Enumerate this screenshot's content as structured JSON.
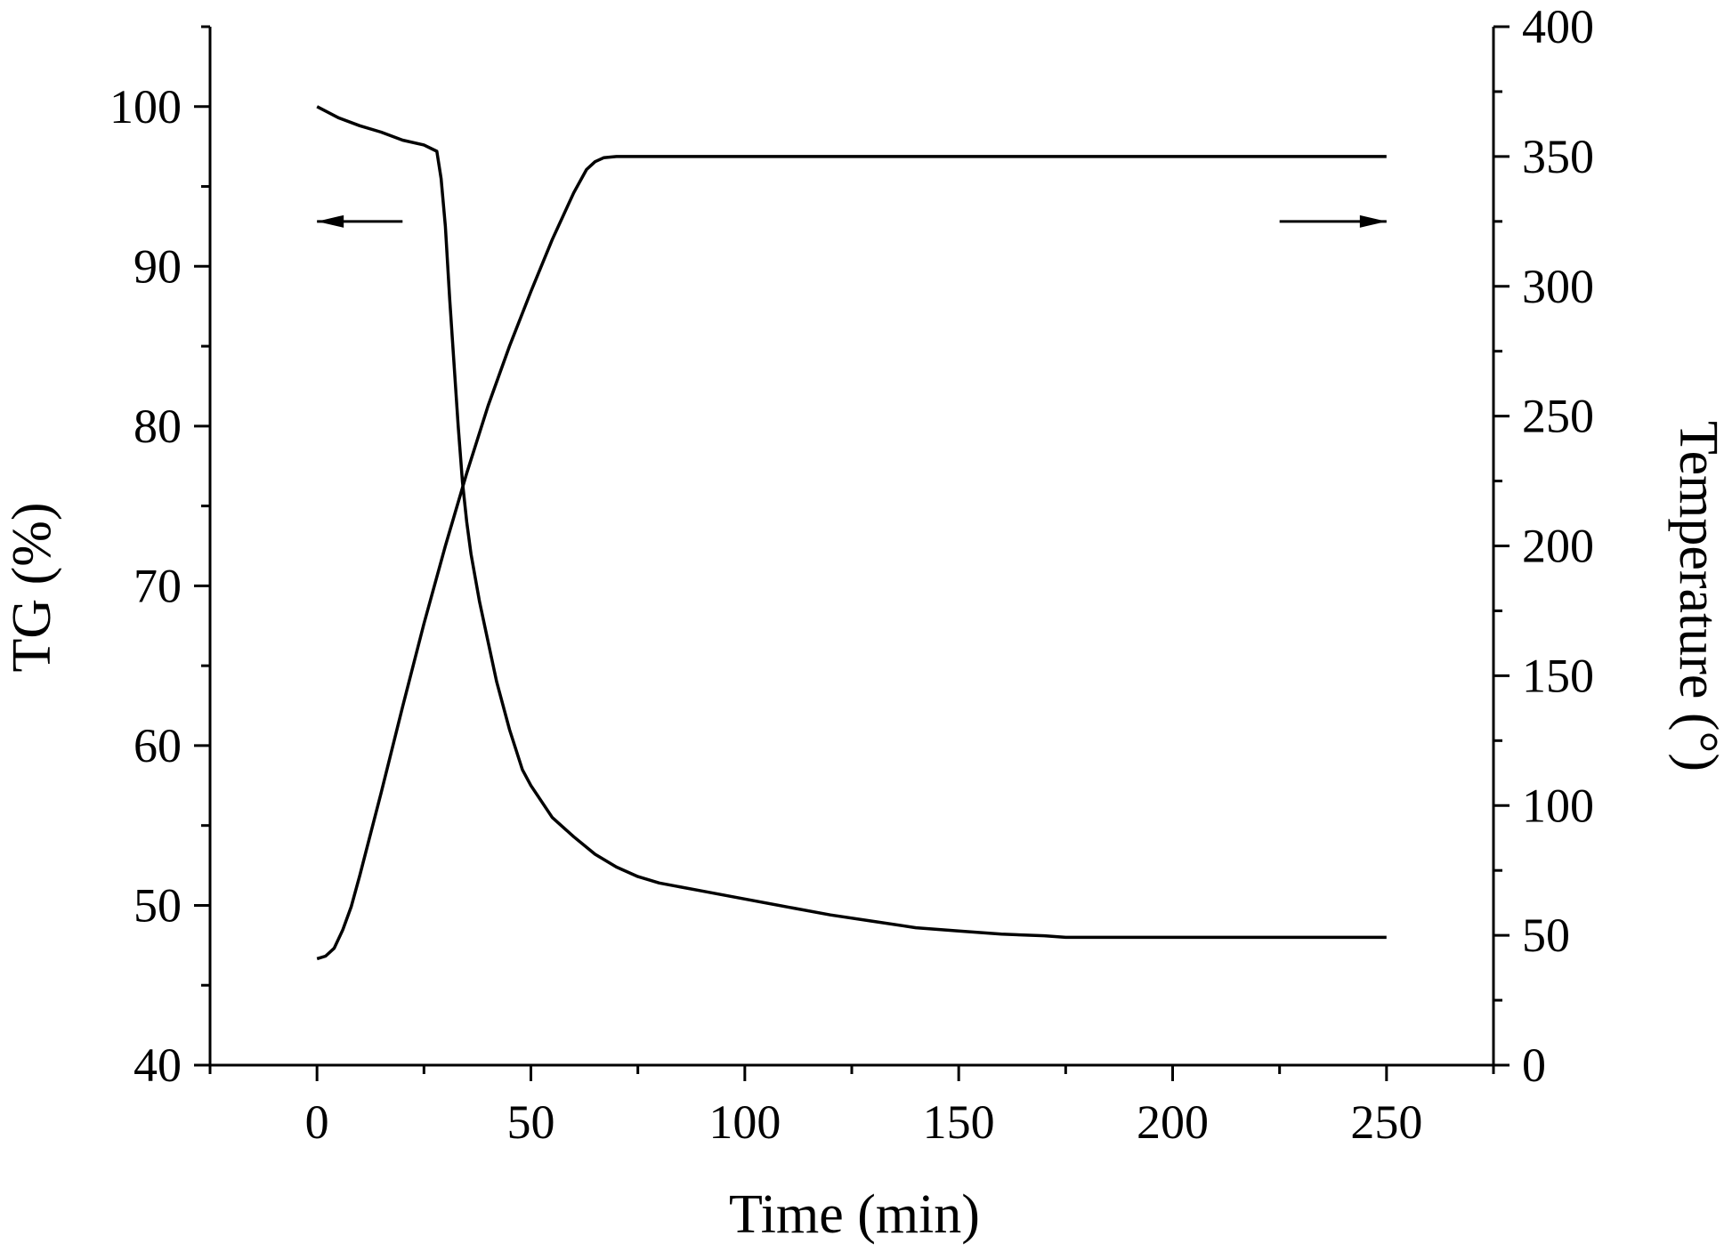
{
  "chart_data": {
    "type": "line",
    "title": "",
    "xlabel": "Time (min)",
    "ylabel": "TG (%)",
    "y2label": "Temperature (°)",
    "xlim": [
      -25,
      275
    ],
    "ylim": [
      40,
      105
    ],
    "y2lim": [
      0,
      400
    ],
    "x_ticks": [
      0,
      50,
      100,
      150,
      200,
      250
    ],
    "x_tick_labels": [
      "0",
      "50",
      "100",
      "150",
      "200",
      "250"
    ],
    "y_ticks": [
      40,
      50,
      60,
      70,
      80,
      90,
      100
    ],
    "y_tick_labels": [
      "40",
      "50",
      "60",
      "70",
      "80",
      "90",
      "100"
    ],
    "y2_ticks": [
      0,
      50,
      100,
      150,
      200,
      250,
      300,
      350,
      400
    ],
    "y2_tick_labels": [
      "0",
      "50",
      "100",
      "150",
      "200",
      "250",
      "300",
      "350",
      "400"
    ],
    "grid": false,
    "legend": "none",
    "annotations": [
      {
        "type": "arrow",
        "direction": "left",
        "points_to": "left axis",
        "x_from": 20,
        "x_to": 0,
        "y2": 325
      },
      {
        "type": "arrow",
        "direction": "right",
        "points_to": "right axis",
        "x_from": 225,
        "x_to": 250,
        "y2": 325
      }
    ],
    "series": [
      {
        "axis": "left",
        "color": "#000000",
        "x": [
          0,
          5,
          10,
          15,
          20,
          25,
          28,
          29,
          30,
          31,
          32,
          33,
          34,
          35,
          36,
          37,
          38,
          40,
          42,
          45,
          48,
          50,
          55,
          60,
          65,
          70,
          75,
          80,
          90,
          100,
          110,
          120,
          130,
          140,
          150,
          160,
          170,
          175,
          200,
          225,
          250
        ],
        "y": [
          100,
          99.3,
          98.8,
          98.4,
          97.9,
          97.6,
          97.2,
          95.5,
          92.5,
          88,
          84,
          80,
          76.5,
          74,
          72,
          70.5,
          69,
          66.5,
          64,
          61,
          58.5,
          57.5,
          55.5,
          54.3,
          53.2,
          52.4,
          51.8,
          51.4,
          50.9,
          50.4,
          49.9,
          49.4,
          49.0,
          48.6,
          48.4,
          48.2,
          48.1,
          48.0,
          48.0,
          48.0,
          48.0
        ]
      },
      {
        "axis": "right",
        "color": "#000000",
        "x": [
          0,
          2,
          4,
          6,
          8,
          10,
          15,
          20,
          25,
          30,
          35,
          40,
          45,
          50,
          55,
          60,
          63,
          65,
          67,
          70,
          75,
          100,
          150,
          200,
          250
        ],
        "y": [
          41,
          42,
          45,
          52,
          61,
          73,
          105,
          138,
          170,
          200,
          228,
          254,
          277,
          298,
          318,
          336,
          345,
          348,
          349.5,
          350,
          350,
          350,
          350,
          350,
          350
        ]
      }
    ]
  }
}
